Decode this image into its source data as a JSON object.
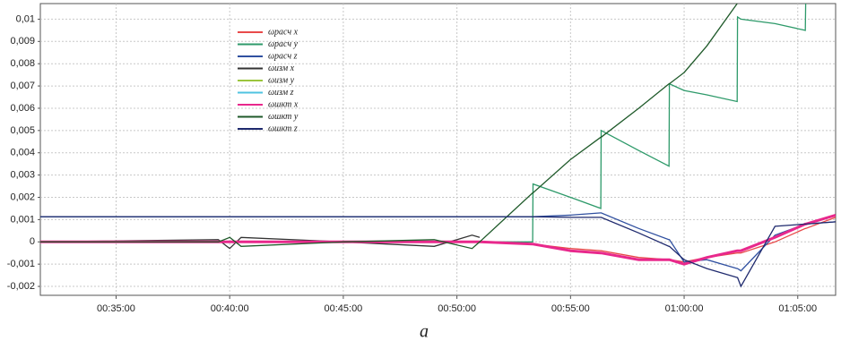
{
  "chart_data": {
    "type": "line",
    "caption": "a",
    "x": [
      "00:31:40",
      "00:39:30",
      "00:40:00",
      "00:40:30",
      "00:45:00",
      "00:49:00",
      "00:50:40",
      "00:51:00",
      "00:53:20",
      "00:53:21",
      "00:55:00",
      "00:56:20",
      "00:56:21",
      "00:58:00",
      "00:59:20",
      "00:59:21",
      "01:00:00",
      "01:01:00",
      "01:02:20",
      "01:02:21",
      "01:02:30",
      "01:04:00",
      "01:05:20",
      "01:05:21",
      "01:06:40"
    ],
    "xlim": [
      "00:31:40",
      "01:06:40"
    ],
    "xticks": [
      "00:35:00",
      "00:40:00",
      "00:45:00",
      "00:50:00",
      "00:55:00",
      "01:00:00",
      "01:05:00"
    ],
    "ylim": [
      -0.0024,
      0.0107
    ],
    "yticks": [
      {
        "value": 0.01,
        "label": "0,01"
      },
      {
        "value": 0.009,
        "label": "0,009"
      },
      {
        "value": 0.008,
        "label": "0,008"
      },
      {
        "value": 0.007,
        "label": "0,007"
      },
      {
        "value": 0.006,
        "label": "0,006"
      },
      {
        "value": 0.005,
        "label": "0,005"
      },
      {
        "value": 0.004,
        "label": "0,004"
      },
      {
        "value": 0.003,
        "label": "0,003"
      },
      {
        "value": 0.002,
        "label": "0,002"
      },
      {
        "value": 0.001,
        "label": "0,001"
      },
      0,
      {
        "value": -0.001,
        "label": "-0,001"
      },
      {
        "value": -0.002,
        "label": "-0,002"
      }
    ],
    "grid": true,
    "legend": "upper-left",
    "series": [
      {
        "name": "ωрасч x",
        "color": "#e84a4a",
        "values": [
          0,
          0,
          0,
          0,
          0,
          0,
          0,
          0,
          -0.0001,
          -0.0001,
          -0.0003,
          -0.0004,
          -0.0004,
          -0.0007,
          -0.0008,
          -0.0008,
          -0.0009,
          -0.0007,
          -0.0005,
          -0.0005,
          -0.0005,
          0,
          0.0006,
          0.0006,
          0.0011
        ]
      },
      {
        "name": "ωрасч y",
        "color": "#2e9a6a",
        "values": [
          0,
          0,
          0,
          0,
          0,
          0,
          0,
          0,
          0,
          0.0026,
          0.002,
          0.0015,
          0.005,
          0.0041,
          0.0034,
          0.0071,
          0.0068,
          0.0066,
          0.0063,
          0.0101,
          0.01,
          0.0098,
          0.0095,
          0.0107,
          null
        ]
      },
      {
        "name": "ωрасч z",
        "color": "#3050a0",
        "values": [
          0.00113,
          0.00113,
          0.00113,
          0.00113,
          0.00113,
          0.00113,
          0.00113,
          0.00113,
          0.00113,
          0.00113,
          0.0012,
          0.0013,
          0.0013,
          0.0006,
          0.0001,
          0.0001,
          -0.0009,
          -0.0008,
          -0.0012,
          -0.0012,
          -0.0013,
          0.0003,
          0.0008,
          0.0008,
          0.0009
        ]
      },
      {
        "name": "ωизм x",
        "color": "#333333",
        "values": [
          0,
          0.0001,
          -0.0003,
          0.0002,
          0,
          -0.0002,
          0.0003,
          0.0002,
          null,
          null,
          null,
          null,
          null,
          null,
          null,
          null,
          null,
          null,
          null,
          null,
          null,
          null,
          null,
          null,
          null
        ]
      },
      {
        "name": "ωизм y",
        "color": "#9bc53d",
        "values": [
          0,
          0,
          0,
          0,
          0,
          0,
          0,
          0,
          null,
          null,
          null,
          null,
          null,
          null,
          null,
          null,
          null,
          null,
          null,
          null,
          null,
          null,
          null,
          null,
          null
        ]
      },
      {
        "name": "ωизм z",
        "color": "#4fc3e0",
        "values": [
          0.00113,
          0.00113,
          0.00113,
          0.00113,
          0.00113,
          0.00113,
          0.00113,
          0.00113,
          0.00113,
          null,
          null,
          null,
          null,
          null,
          null,
          null,
          null,
          null,
          null,
          null,
          null,
          null,
          null,
          null,
          null
        ]
      },
      {
        "name": "ωшкт x",
        "color": "#e8288c",
        "values": [
          0,
          0,
          0,
          0,
          0,
          0,
          0,
          0,
          -0.0001,
          -0.0001,
          -0.0004,
          -0.0005,
          -0.0005,
          -0.0008,
          -0.0008,
          -0.0008,
          -0.001,
          -0.0007,
          -0.0004,
          -0.0004,
          -0.0004,
          0.0002,
          0.0008,
          0.0008,
          0.0012
        ]
      },
      {
        "name": "ωшкт y",
        "color": "#1f5a2a",
        "values": [
          0,
          0,
          0.0002,
          -0.0002,
          0,
          0.0001,
          -0.0003,
          0,
          0.0022,
          0.0022,
          0.0037,
          0.0047,
          0.0047,
          0.006,
          0.0071,
          0.0071,
          0.0076,
          0.0088,
          0.0107,
          null,
          null,
          null,
          null,
          null,
          null
        ]
      },
      {
        "name": "ωшкт z",
        "color": "#1f2a6e",
        "values": [
          0.00113,
          0.00113,
          0.00113,
          0.00113,
          0.00113,
          0.00113,
          0.00113,
          0.00113,
          0.00113,
          0.00113,
          0.0011,
          0.0011,
          0.0011,
          0.0004,
          -0.0002,
          -0.0002,
          -0.0008,
          -0.0012,
          -0.0016,
          -0.0016,
          -0.002,
          0.0007,
          0.0008,
          0.0008,
          0.0009
        ]
      }
    ]
  }
}
